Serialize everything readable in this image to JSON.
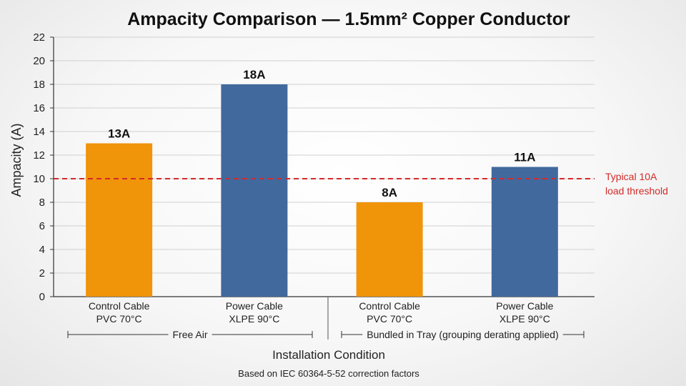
{
  "chart_data": {
    "type": "bar",
    "title": "Ampacity Comparison — 1.5mm² Copper Conductor",
    "ylabel": "Ampacity (A)",
    "xlabel": "Installation Condition",
    "ylim": [
      0,
      22
    ],
    "yticks": [
      0,
      2,
      4,
      6,
      8,
      10,
      12,
      14,
      16,
      18,
      20,
      22
    ],
    "grid": true,
    "categories": [
      {
        "line1": "Control Cable",
        "line2": "PVC 70°C",
        "value": 13,
        "label": "13A",
        "color": "#f0940a"
      },
      {
        "line1": "Power Cable",
        "line2": "XLPE 90°C",
        "value": 18,
        "label": "18A",
        "color": "#41699e"
      },
      {
        "line1": "Control Cable",
        "line2": "PVC 70°C",
        "value": 8,
        "label": "8A",
        "color": "#f0940a"
      },
      {
        "line1": "Power Cable",
        "line2": "XLPE 90°C",
        "value": 11,
        "label": "11A",
        "color": "#41699e"
      }
    ],
    "groups": [
      {
        "label": "Free Air",
        "categories": [
          0,
          1
        ]
      },
      {
        "label": "Bundled in Tray (grouping derating applied)",
        "categories": [
          2,
          3
        ]
      }
    ],
    "reference_line": {
      "value": 10,
      "color": "#d42a2a",
      "label_line1": "Typical 10A",
      "label_line2": "load threshold"
    },
    "note": "Based on IEC 60364-5-52 correction factors"
  }
}
